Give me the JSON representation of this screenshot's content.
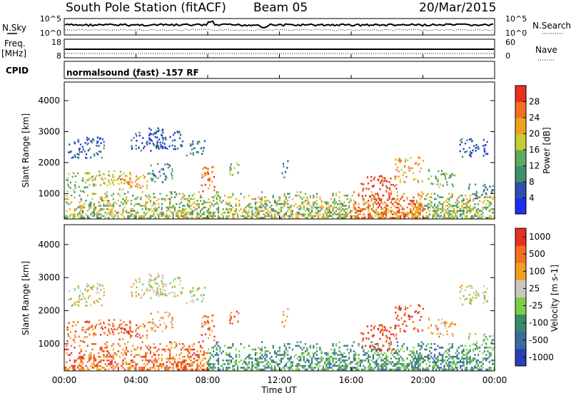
{
  "header": {
    "station": "South Pole Station (fitACF)",
    "beam": "Beam 05",
    "date": "20/Mar/2015"
  },
  "top_panels": {
    "nsky_label": "N.Sky",
    "nsky_ticks": [
      "10^5",
      "10^0"
    ],
    "nsearch_label": "N.Search",
    "nsearch_ticks": [
      "10^5",
      "10^0"
    ],
    "freq_label": "Freq.",
    "freq_unit": "[MHz]",
    "freq_ticks": [
      "18",
      "8"
    ],
    "nave_label": "Nave",
    "nave_ticks": [
      "60",
      "0"
    ],
    "cpid_label": "CPID",
    "cpid_text": "normalsound (fast) -157 RF"
  },
  "chart_data": [
    {
      "type": "heatmap",
      "name": "power",
      "ylabel": "Slant Range [km]",
      "yticks": [
        1000,
        2000,
        3000,
        4000
      ],
      "ylim": [
        180,
        4600
      ],
      "xlim": [
        0,
        24
      ],
      "colorbar": {
        "label": "Power [dB]",
        "ticks": [
          "4",
          "8",
          "12",
          "16",
          "20",
          "24",
          "28"
        ],
        "colors": [
          "#1f2ff0",
          "#2c4fb0",
          "#3f8f6a",
          "#5eaa5e",
          "#c8cc30",
          "#f0a020",
          "#f07020",
          "#e83020"
        ]
      }
    },
    {
      "type": "heatmap",
      "name": "velocity",
      "ylabel": "Slant Range [km]",
      "yticks": [
        1000,
        2000,
        3000,
        4000
      ],
      "ylim": [
        180,
        4600
      ],
      "xlim": [
        0,
        24
      ],
      "xlabel": "Time UT",
      "xticks": [
        "00:00",
        "04:00",
        "08:00",
        "12:00",
        "16:00",
        "20:00",
        "00:00"
      ],
      "colorbar": {
        "label": "Velocity [m s-1]",
        "ticks": [
          "1000",
          "500",
          "100",
          "25",
          "-25",
          "-100",
          "-500",
          "-1000"
        ],
        "colors": [
          "#2a3fb0",
          "#3a6aa0",
          "#3a8a6a",
          "#7acc4a",
          "#c8c8c0",
          "#f0a020",
          "#f07020",
          "#e83020"
        ]
      }
    }
  ]
}
